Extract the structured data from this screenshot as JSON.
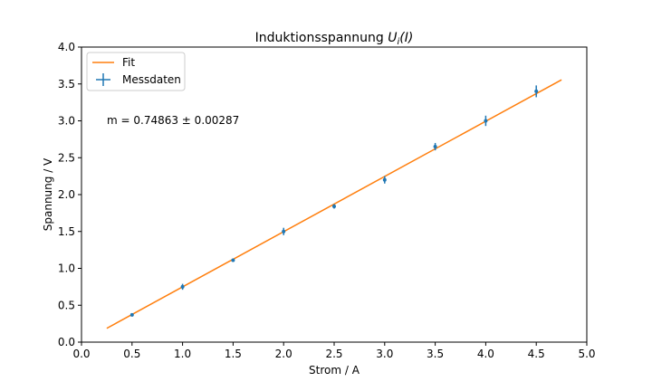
{
  "chart_data": {
    "type": "scatter",
    "title_prefix": "Induktionsspannung ",
    "title_math_U": "U",
    "title_math_sub": "i",
    "title_math_arg": "(I)",
    "xlabel": "Strom / A",
    "ylabel": "Spannung  / V",
    "xlim": [
      0.0,
      5.0
    ],
    "ylim": [
      0.0,
      4.0
    ],
    "x_ticks": [
      "0.0",
      "0.5",
      "1.0",
      "1.5",
      "2.0",
      "2.5",
      "3.0",
      "3.5",
      "4.0",
      "4.5",
      "5.0"
    ],
    "y_ticks": [
      "0.0",
      "0.5",
      "1.0",
      "1.5",
      "2.0",
      "2.5",
      "3.0",
      "3.5",
      "4.0"
    ],
    "legend_position": "top-left",
    "grid": false,
    "annotation": "m = 0.74863 ± 0.00287",
    "series": [
      {
        "name": "Messdaten",
        "color": "#1f77b4",
        "x": [
          0.5,
          1.0,
          1.5,
          2.0,
          2.5,
          3.0,
          3.5,
          4.0,
          4.5
        ],
        "y": [
          0.37,
          0.75,
          1.11,
          1.5,
          1.84,
          2.2,
          2.65,
          3.0,
          3.4
        ],
        "yerr": [
          0.02,
          0.04,
          0.02,
          0.05,
          0.03,
          0.05,
          0.05,
          0.07,
          0.08
        ]
      },
      {
        "name": "Fit",
        "color": "#ff7f0e",
        "slope": 0.74863,
        "x": [
          0.25,
          4.75
        ]
      }
    ]
  }
}
